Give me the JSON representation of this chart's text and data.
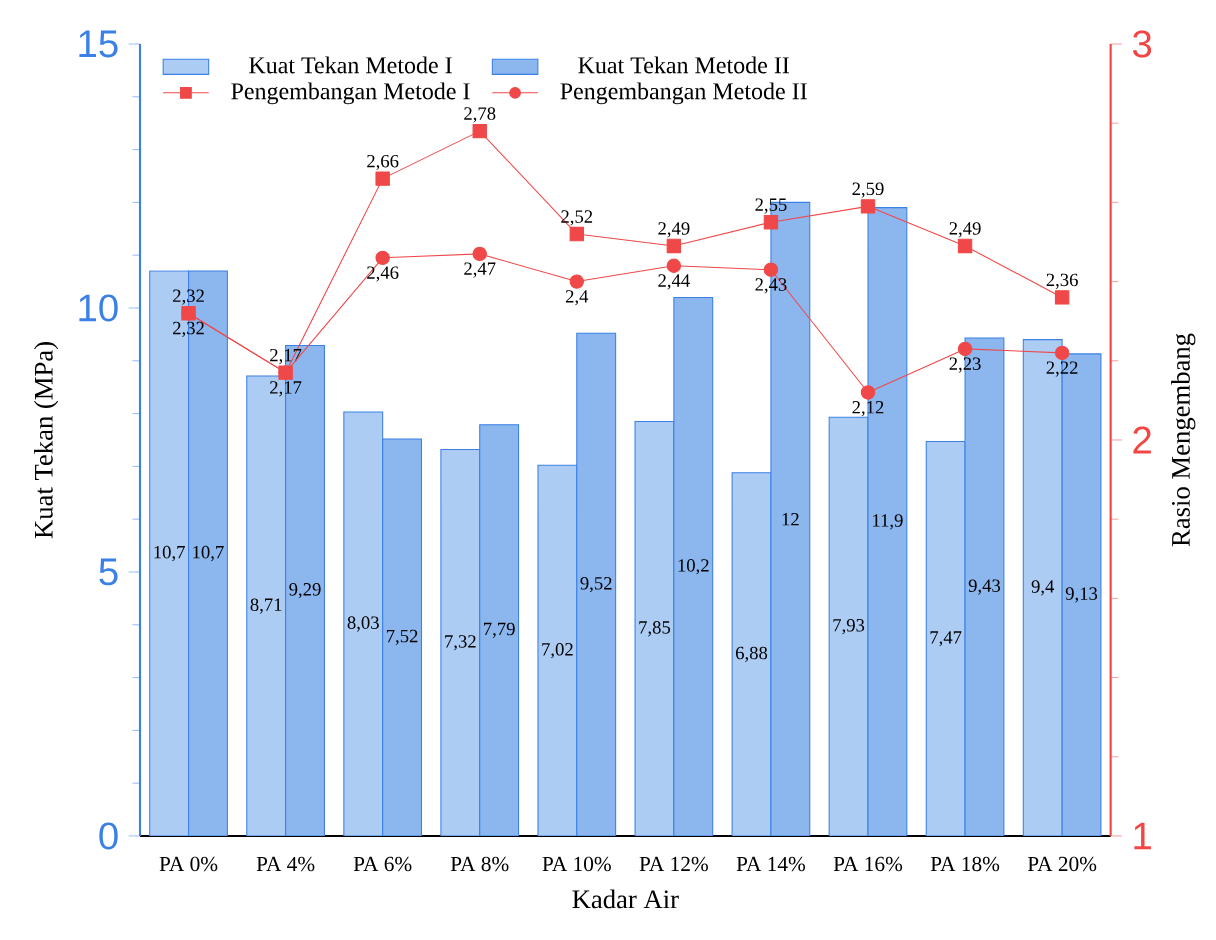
{
  "chart_data": {
    "type": "bar",
    "xlabel": "Kadar Air",
    "ylabel": "Kuat Tekan (MPa)",
    "y2label": "Rasio Mengembang",
    "categories": [
      "PA 0%",
      "PA 4%",
      "PA 6%",
      "PA 8%",
      "PA 10%",
      "PA 12%",
      "PA 14%",
      "PA 16%",
      "PA 18%",
      "PA 20%"
    ],
    "ylim": [
      0,
      15
    ],
    "yticks": [
      0,
      5,
      10,
      15
    ],
    "y2lim": [
      1,
      3
    ],
    "y2ticks": [
      1,
      2,
      3
    ],
    "legend": "top left",
    "series": [
      {
        "name": "Kuat Tekan Metode I",
        "color": "#acccf4",
        "values": [
          10.7,
          8.71,
          8.03,
          7.32,
          7.02,
          7.85,
          6.88,
          7.93,
          7.47,
          9.4
        ],
        "value_labels": [
          "10,7",
          "8,71",
          "8,03",
          "7,32",
          "7,02",
          "7,85",
          "6,88",
          "7,93",
          "7,47",
          "9,4"
        ]
      },
      {
        "name": "Kuat Tekan Metode II",
        "color": "#8cb6ee",
        "values": [
          10.7,
          9.29,
          7.52,
          7.79,
          9.52,
          10.2,
          12,
          11.9,
          9.43,
          9.13
        ],
        "value_labels": [
          "10,7",
          "9,29",
          "7,52",
          "7,79",
          "9,52",
          "10,2",
          "12",
          "11,9",
          "9,43",
          "9,13"
        ]
      },
      {
        "name": "Pengembangan Metode I",
        "type": "line",
        "axis": "y2",
        "marker": "square",
        "color": "#f04848",
        "values": [
          2.32,
          2.17,
          2.66,
          2.78,
          2.52,
          2.49,
          2.55,
          2.59,
          2.49,
          2.36
        ],
        "value_labels": [
          "2,32",
          "2,17",
          "2,66",
          "2,78",
          "2,52",
          "2,49",
          "2,55",
          "2,59",
          "2,49",
          "2,36"
        ]
      },
      {
        "name": "Pengembangan Metode II",
        "type": "line",
        "axis": "y2",
        "marker": "circle",
        "color": "#f04848",
        "values": [
          2.32,
          2.17,
          2.46,
          2.47,
          2.4,
          2.44,
          2.43,
          2.12,
          2.23,
          2.22
        ],
        "value_labels": [
          "2,32",
          "2,17",
          "2,46",
          "2,47",
          "2,4",
          "2,44",
          "2,43",
          "2,12",
          "2,23",
          "2,22"
        ]
      }
    ]
  }
}
